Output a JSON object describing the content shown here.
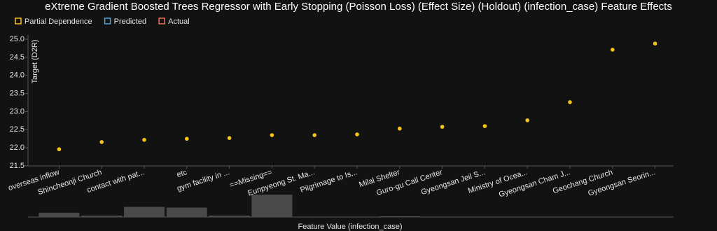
{
  "chart_data": {
    "type": "scatter",
    "title": "eXtreme Gradient Boosted Trees Regressor with Early Stopping (Poisson Loss) (Effect Size) (Holdout) (infection_case) Feature Effects",
    "x_label": "Feature Value (infection_case)",
    "y_label": "Target (D2R)",
    "categories": [
      "overseas inflow",
      "Shincheonji Church",
      "contact with pat...",
      "etc",
      "gym facility in ...",
      "==Missing==",
      "Eunpyeong St. Ma...",
      "Pilgrimage to Is...",
      "Milal Shelter",
      "Guro-gu Call Center",
      "Gyeongsan Jeil S...",
      "Ministry of Ocea...",
      "Gyeongsan Cham J...",
      "Geochang Church",
      "Gyeongsan Seorin..."
    ],
    "series": [
      {
        "name": "Partial Dependence",
        "color": "#f5c518",
        "values": [
          21.96,
          22.16,
          22.22,
          22.25,
          22.27,
          22.35,
          22.35,
          22.37,
          22.53,
          22.58,
          22.6,
          22.76,
          23.26,
          24.71,
          24.88
        ]
      },
      {
        "name": "Predicted",
        "color": "#4ea5d9",
        "values": [
          null,
          null,
          null,
          null,
          null,
          null,
          null,
          null,
          null,
          null,
          null,
          null,
          null,
          null,
          null
        ]
      },
      {
        "name": "Actual",
        "color": "#e9734f",
        "values": [
          null,
          null,
          null,
          null,
          null,
          null,
          null,
          null,
          null,
          null,
          null,
          null,
          null,
          null,
          null
        ]
      }
    ],
    "histogram": {
      "color": "#4a4a4a",
      "values": [
        6,
        2,
        14,
        13,
        2,
        31,
        0,
        0,
        1,
        0,
        0,
        0,
        0,
        0,
        0
      ]
    },
    "ylim": [
      21.5,
      25.0
    ],
    "yticks": [
      21.5,
      {
        "value": 22,
        "label": "22.0"
      },
      22.5,
      {
        "value": 23,
        "label": "23.0"
      },
      23.5,
      {
        "value": 24,
        "label": "24.0"
      },
      24.5,
      {
        "value": 25,
        "label": "25.0"
      }
    ]
  }
}
